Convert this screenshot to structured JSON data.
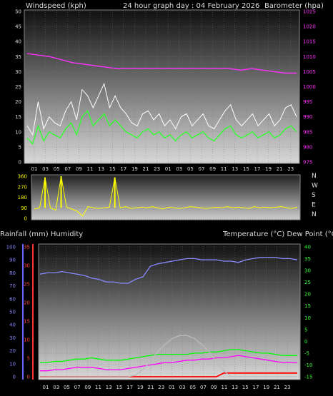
{
  "header": {
    "left_label": "Windspeed (kph)",
    "center_label": "24 hour graph day : 04 February 2026",
    "right_label": "Barometer (hpa)"
  },
  "bottom_header": {
    "left_label": "Rainfall (mm)  Humidity",
    "right_label": "Temperature (°C) Dew Point (°C)"
  },
  "x_labels": [
    "01",
    "03",
    "05",
    "07",
    "09",
    "11",
    "13",
    "15",
    "17",
    "19",
    "21",
    "23",
    "01",
    "03",
    "05",
    "07",
    "09",
    "11",
    "13",
    "15",
    "17",
    "19",
    "21",
    "23"
  ],
  "colors": {
    "wind_avg": "#33ff33",
    "wind_gust": "#ffffff",
    "barometer": "#ff33ff",
    "direction": "#ffff00",
    "humidity": "#8888ff",
    "temperature": "#00ff00",
    "dewpoint": "#ff00ff",
    "rain": "#ff0000",
    "solar": "#bbbbbb",
    "rain_left_axis": "#6666ff",
    "rain_right_axis": "#ff3333",
    "temp_axis": "#33ff33"
  },
  "chart_data": [
    {
      "type": "line",
      "name": "wind-barometer",
      "y_left_ticks": [
        "0",
        "5",
        "10",
        "15",
        "20",
        "25",
        "30",
        "35",
        "40",
        "45",
        "50"
      ],
      "y_right_ticks": [
        "975",
        "980",
        "985",
        "990",
        "995",
        "1000",
        "1005",
        "1010",
        "1015",
        "1020",
        "1025"
      ],
      "ylim_left": [
        0,
        50
      ],
      "ylim_right": [
        975,
        1025
      ],
      "series": [
        {
          "key": "barometer",
          "values": [
            1011,
            1010.5,
            1010,
            1009,
            1008,
            1007.5,
            1007,
            1006.5,
            1006,
            1006,
            1006,
            1006,
            1006,
            1006,
            1006,
            1006,
            1006,
            1006,
            1006,
            1005.5,
            1006,
            1005.5,
            1005,
            1004.5,
            1004.5
          ]
        },
        {
          "key": "wind_avg",
          "values": [
            8,
            6,
            12,
            7,
            10,
            9,
            8,
            11,
            13,
            9,
            15,
            17,
            12,
            14,
            16,
            12,
            14,
            12,
            10,
            9,
            8,
            10,
            11,
            9,
            10,
            8,
            9,
            7,
            9,
            10,
            8,
            9,
            10,
            8,
            7,
            9,
            11,
            12,
            9,
            8,
            9,
            10,
            8,
            9,
            10,
            8,
            9,
            11,
            12,
            10
          ]
        },
        {
          "key": "wind_gust",
          "values": [
            12,
            9,
            20,
            11,
            15,
            13,
            12,
            17,
            20,
            14,
            24,
            22,
            18,
            22,
            26,
            18,
            22,
            18,
            16,
            13,
            12,
            16,
            17,
            14,
            16,
            12,
            14,
            11,
            15,
            16,
            12,
            14,
            16,
            12,
            11,
            14,
            17,
            19,
            14,
            12,
            14,
            16,
            12,
            14,
            16,
            12,
            14,
            18,
            19,
            15
          ]
        }
      ]
    },
    {
      "type": "scatter",
      "name": "wind-direction",
      "y_ticks": [
        "0",
        "90",
        "180",
        "270",
        "360"
      ],
      "ylim": [
        0,
        360
      ],
      "compass_labels": [
        "N",
        "W",
        "S",
        "E",
        "N"
      ],
      "values": [
        80,
        90,
        350,
        90,
        70,
        360,
        95,
        80,
        60,
        20,
        100,
        90,
        85,
        90,
        95,
        350,
        90,
        100,
        85,
        90,
        95,
        90,
        100,
        90,
        80,
        95,
        90,
        85,
        90,
        100,
        95,
        90,
        85,
        90,
        95,
        90,
        100,
        90,
        95,
        90,
        85,
        100,
        90,
        95,
        90,
        95,
        100,
        90,
        85,
        95
      ]
    },
    {
      "type": "line",
      "name": "rain-humidity-temperature",
      "y_left_ticks": [
        "0",
        "10",
        "20",
        "30",
        "40",
        "50",
        "60",
        "70",
        "80",
        "90",
        "100"
      ],
      "y_left2_ticks": [
        "0",
        "5",
        "10",
        "15",
        "20",
        "25",
        "30",
        "35"
      ],
      "y_right_ticks": [
        "-15",
        "-10",
        "-5",
        "0",
        "5",
        "10",
        "15",
        "20",
        "25",
        "30",
        "35",
        "40"
      ],
      "ylim_humidity": [
        0,
        100
      ],
      "ylim_rain": [
        0,
        35
      ],
      "ylim_temp": [
        -15,
        40
      ],
      "series": [
        {
          "key": "humidity",
          "values": [
            79,
            80,
            80,
            81,
            80,
            79,
            78,
            76,
            75,
            73,
            73,
            72,
            72,
            75,
            77,
            85,
            87,
            88,
            89,
            90,
            91,
            91,
            90,
            90,
            90,
            89,
            89,
            88,
            90,
            91,
            92,
            92,
            92,
            91,
            91,
            90
          ]
        },
        {
          "key": "temperature",
          "values": [
            -9,
            -9,
            -8.5,
            -8.5,
            -8,
            -7.5,
            -7.5,
            -7,
            -7.5,
            -8,
            -8,
            -8,
            -7.5,
            -7,
            -6.5,
            -6,
            -5.5,
            -5.5,
            -5.5,
            -5.5,
            -5.5,
            -5,
            -5,
            -4.5,
            -4.5,
            -4,
            -3.5,
            -3.5,
            -4,
            -4.5,
            -5,
            -5,
            -5.5,
            -6,
            -6,
            -6
          ]
        },
        {
          "key": "dewpoint",
          "values": [
            -12.5,
            -12.5,
            -12,
            -12,
            -11.5,
            -11,
            -11,
            -11,
            -11.5,
            -12,
            -12,
            -12,
            -11.5,
            -11,
            -10.5,
            -10,
            -9.5,
            -9,
            -9,
            -8.5,
            -8,
            -8,
            -7.5,
            -7.5,
            -7,
            -7,
            -6.5,
            -6,
            -6.5,
            -7,
            -7.5,
            -8,
            -8.5,
            -9,
            -9,
            -9
          ]
        },
        {
          "key": "rain",
          "values": [
            0,
            0,
            0,
            0,
            0,
            0,
            0,
            0,
            0,
            0,
            0,
            0,
            0,
            0,
            0,
            0,
            0,
            0,
            0,
            0,
            0,
            0,
            0,
            0,
            0,
            1,
            1,
            1,
            1,
            1,
            1,
            1,
            1,
            1,
            1,
            1
          ]
        },
        {
          "key": "solar",
          "values": [
            0,
            0,
            0,
            0,
            0,
            0,
            0,
            0,
            0,
            0,
            0,
            0,
            0,
            1,
            5,
            10,
            17,
            22,
            26,
            28,
            28,
            26,
            22,
            17,
            10,
            4,
            0,
            0,
            0,
            0,
            0,
            0,
            0,
            0,
            0,
            0
          ]
        }
      ]
    }
  ]
}
